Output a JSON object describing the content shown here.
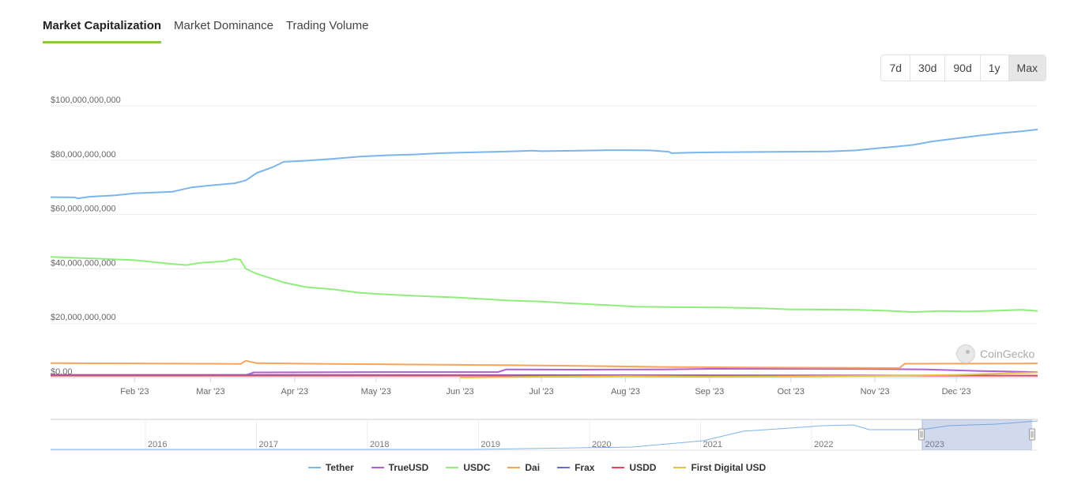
{
  "tabs": [
    {
      "label": "Market Capitalization",
      "active": true
    },
    {
      "label": "Market Dominance",
      "active": false
    },
    {
      "label": "Trading Volume",
      "active": false
    }
  ],
  "range_buttons": [
    {
      "label": "7d",
      "selected": false
    },
    {
      "label": "30d",
      "selected": false
    },
    {
      "label": "90d",
      "selected": false
    },
    {
      "label": "1y",
      "selected": false
    },
    {
      "label": "Max",
      "selected": true
    }
  ],
  "watermark": "CoinGecko",
  "chart_data": {
    "type": "line",
    "ylim": [
      0,
      100000000000
    ],
    "yticks": [
      0,
      20000000000,
      40000000000,
      60000000000,
      80000000000,
      100000000000
    ],
    "ytick_labels": [
      "$0.00",
      "$20,000,000,000",
      "$40,000,000,000",
      "$60,000,000,000",
      "$80,000,000,000",
      "$100,000,000,000"
    ],
    "xlim": [
      "2023-01-01",
      "2023-12-31"
    ],
    "xticks": [
      "2023-02-01",
      "2023-03-01",
      "2023-04-01",
      "2023-05-01",
      "2023-06-01",
      "2023-07-01",
      "2023-08-01",
      "2023-09-01",
      "2023-10-01",
      "2023-11-01",
      "2023-12-01"
    ],
    "xtick_labels": [
      "Feb '23",
      "Mar '23",
      "Apr '23",
      "May '23",
      "Jun '23",
      "Jul '23",
      "Aug '23",
      "Sep '23",
      "Oct '23",
      "Nov '23",
      "Dec '23"
    ],
    "grid": true,
    "legend_position": "bottom",
    "series": [
      {
        "name": "Tether",
        "color": "#7cb5ec",
        "points": [
          [
            "2023-01-01",
            66400000000.0
          ],
          [
            "2023-01-10",
            66300000000.0
          ],
          [
            "2023-01-11",
            65900000000.0
          ],
          [
            "2023-01-15",
            66500000000.0
          ],
          [
            "2023-01-25",
            67100000000.0
          ],
          [
            "2023-02-01",
            67800000000.0
          ],
          [
            "2023-02-15",
            68400000000.0
          ],
          [
            "2023-02-22",
            70000000000.0
          ],
          [
            "2023-03-01",
            70700000000.0
          ],
          [
            "2023-03-10",
            71500000000.0
          ],
          [
            "2023-03-14",
            72600000000.0
          ],
          [
            "2023-03-18",
            75300000000.0
          ],
          [
            "2023-03-24",
            77500000000.0
          ],
          [
            "2023-03-28",
            79400000000.0
          ],
          [
            "2023-04-05",
            79800000000.0
          ],
          [
            "2023-04-15",
            80500000000.0
          ],
          [
            "2023-04-25",
            81300000000.0
          ],
          [
            "2023-05-05",
            81800000000.0
          ],
          [
            "2023-05-15",
            82100000000.0
          ],
          [
            "2023-05-25",
            82600000000.0
          ],
          [
            "2023-06-01",
            82800000000.0
          ],
          [
            "2023-06-15",
            83100000000.0
          ],
          [
            "2023-06-28",
            83500000000.0
          ],
          [
            "2023-07-01",
            83300000000.0
          ],
          [
            "2023-07-15",
            83500000000.0
          ],
          [
            "2023-07-25",
            83700000000.0
          ],
          [
            "2023-08-01",
            83700000000.0
          ],
          [
            "2023-08-10",
            83600000000.0
          ],
          [
            "2023-08-17",
            83100000000.0
          ],
          [
            "2023-08-18",
            82600000000.0
          ],
          [
            "2023-08-25",
            82800000000.0
          ],
          [
            "2023-09-05",
            82900000000.0
          ],
          [
            "2023-09-15",
            83000000000.0
          ],
          [
            "2023-09-30",
            83100000000.0
          ],
          [
            "2023-10-15",
            83200000000.0
          ],
          [
            "2023-10-25",
            83600000000.0
          ],
          [
            "2023-11-01",
            84300000000.0
          ],
          [
            "2023-11-08",
            84900000000.0
          ],
          [
            "2023-11-15",
            85600000000.0
          ],
          [
            "2023-11-22",
            86900000000.0
          ],
          [
            "2023-12-01",
            88000000000.0
          ],
          [
            "2023-12-08",
            88900000000.0
          ],
          [
            "2023-12-18",
            90000000000.0
          ],
          [
            "2023-12-25",
            90600000000.0
          ],
          [
            "2023-12-31",
            91300000000.0
          ]
        ]
      },
      {
        "name": "TrueUSD",
        "color": "#b05fd6",
        "points": [
          [
            "2023-01-01",
            800000000.0
          ],
          [
            "2023-03-14",
            900000000.0
          ],
          [
            "2023-03-17",
            1900000000.0
          ],
          [
            "2023-05-01",
            2000000000.0
          ],
          [
            "2023-06-15",
            2000000000.0
          ],
          [
            "2023-06-18",
            3000000000.0
          ],
          [
            "2023-07-15",
            2900000000.0
          ],
          [
            "2023-08-15",
            3000000000.0
          ],
          [
            "2023-09-01",
            3200000000.0
          ],
          [
            "2023-10-01",
            3200000000.0
          ],
          [
            "2023-11-01",
            3100000000.0
          ],
          [
            "2023-11-20",
            3000000000.0
          ],
          [
            "2023-12-10",
            2400000000.0
          ],
          [
            "2023-12-31",
            2000000000.0
          ]
        ]
      },
      {
        "name": "USDC",
        "color": "#90ed7d",
        "points": [
          [
            "2023-01-01",
            44400000000.0
          ],
          [
            "2023-01-15",
            43900000000.0
          ],
          [
            "2023-02-01",
            43200000000.0
          ],
          [
            "2023-02-15",
            41800000000.0
          ],
          [
            "2023-02-20",
            41400000000.0
          ],
          [
            "2023-02-25",
            42200000000.0
          ],
          [
            "2023-03-06",
            42800000000.0
          ],
          [
            "2023-03-10",
            43700000000.0
          ],
          [
            "2023-03-12",
            43300000000.0
          ],
          [
            "2023-03-14",
            40000000000.0
          ],
          [
            "2023-03-18",
            38200000000.0
          ],
          [
            "2023-03-28",
            35000000000.0
          ],
          [
            "2023-04-05",
            33300000000.0
          ],
          [
            "2023-04-15",
            32500000000.0
          ],
          [
            "2023-04-25",
            31200000000.0
          ],
          [
            "2023-05-05",
            30600000000.0
          ],
          [
            "2023-05-15",
            30100000000.0
          ],
          [
            "2023-05-30",
            29500000000.0
          ],
          [
            "2023-06-10",
            28900000000.0
          ],
          [
            "2023-06-20",
            28300000000.0
          ],
          [
            "2023-07-01",
            28000000000.0
          ],
          [
            "2023-07-10",
            27400000000.0
          ],
          [
            "2023-07-25",
            26700000000.0
          ],
          [
            "2023-08-05",
            26100000000.0
          ],
          [
            "2023-08-20",
            25900000000.0
          ],
          [
            "2023-09-05",
            25800000000.0
          ],
          [
            "2023-09-20",
            25500000000.0
          ],
          [
            "2023-10-01",
            25100000000.0
          ],
          [
            "2023-10-15",
            25000000000.0
          ],
          [
            "2023-10-25",
            24900000000.0
          ],
          [
            "2023-11-05",
            24600000000.0
          ],
          [
            "2023-11-15",
            24100000000.0
          ],
          [
            "2023-11-25",
            24500000000.0
          ],
          [
            "2023-12-05",
            24300000000.0
          ],
          [
            "2023-12-15",
            24600000000.0
          ],
          [
            "2023-12-25",
            24900000000.0
          ],
          [
            "2023-12-31",
            24500000000.0
          ]
        ]
      },
      {
        "name": "Dai",
        "color": "#f7a35c",
        "points": [
          [
            "2023-01-01",
            5300000000.0
          ],
          [
            "2023-02-01",
            5200000000.0
          ],
          [
            "2023-03-01",
            5100000000.0
          ],
          [
            "2023-03-12",
            5000000000.0
          ],
          [
            "2023-03-14",
            6200000000.0
          ],
          [
            "2023-03-18",
            5300000000.0
          ],
          [
            "2023-04-15",
            5000000000.0
          ],
          [
            "2023-05-15",
            4800000000.0
          ],
          [
            "2023-06-15",
            4600000000.0
          ],
          [
            "2023-07-15",
            4300000000.0
          ],
          [
            "2023-08-15",
            3900000000.0
          ],
          [
            "2023-09-15",
            3700000000.0
          ],
          [
            "2023-10-15",
            3600000000.0
          ],
          [
            "2023-11-10",
            3500000000.0
          ],
          [
            "2023-11-12",
            5100000000.0
          ],
          [
            "2023-12-31",
            5200000000.0
          ]
        ]
      },
      {
        "name": "Frax",
        "color": "#6b6bd6",
        "points": [
          [
            "2023-01-01",
            1000000000.0
          ],
          [
            "2023-04-01",
            1000000000.0
          ],
          [
            "2023-07-01",
            900000000.0
          ],
          [
            "2023-10-01",
            800000000.0
          ],
          [
            "2023-12-31",
            700000000.0
          ]
        ]
      },
      {
        "name": "USDD",
        "color": "#e8475b",
        "points": [
          [
            "2023-01-01",
            700000000.0
          ],
          [
            "2023-06-01",
            700000000.0
          ],
          [
            "2023-12-31",
            700000000.0
          ]
        ]
      },
      {
        "name": "First Digital USD",
        "color": "#e4c343",
        "points": [
          [
            "2023-06-01",
            0.0
          ],
          [
            "2023-07-01",
            300000000.0
          ],
          [
            "2023-08-01",
            500000000.0
          ],
          [
            "2023-09-01",
            300000000.0
          ],
          [
            "2023-10-01",
            400000000.0
          ],
          [
            "2023-11-01",
            600000000.0
          ],
          [
            "2023-12-01",
            1000000000.0
          ],
          [
            "2023-12-31",
            1900000000.0
          ]
        ]
      }
    ],
    "navigator": {
      "year_labels": [
        "2016",
        "2017",
        "2018",
        "2019",
        "2020",
        "2021",
        "2022",
        "2023"
      ],
      "selection": [
        "2023-01-01",
        "2023-12-31"
      ]
    }
  }
}
